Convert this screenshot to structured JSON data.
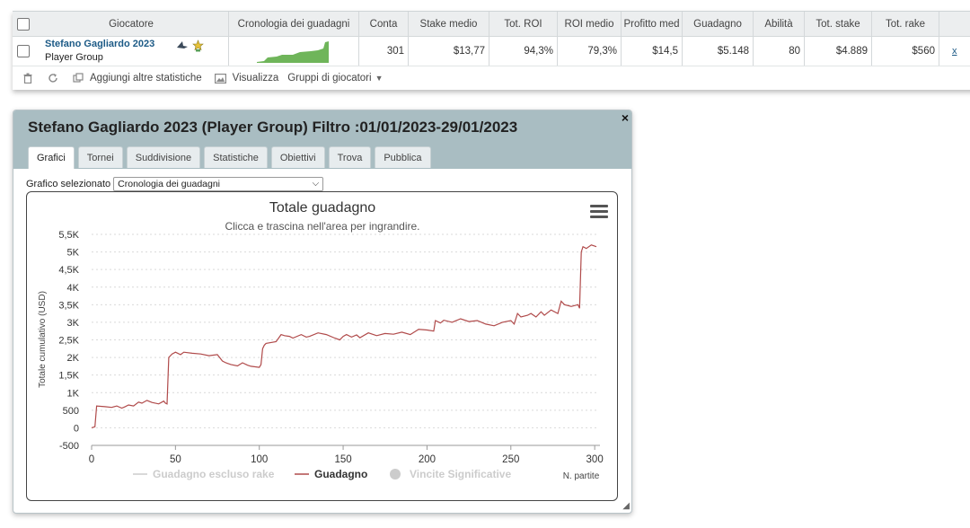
{
  "table": {
    "headers": [
      "Giocatore",
      "Cronologia dei guadagni",
      "Conta",
      "Stake medio",
      "Tot. ROI",
      "ROI medio",
      "Profitto med",
      "Guadagno",
      "Abilità",
      "Tot. stake",
      "Tot. rake"
    ],
    "row": {
      "player_name": "Stefano Gagliardo 2023",
      "player_group": "Player Group",
      "conta": "301",
      "stake_medio": "$13,77",
      "tot_roi": "94,3%",
      "roi_medio": "79,3%",
      "profitto_medio": "$14,5",
      "guadagno": "$5.148",
      "abilita": "80",
      "tot_stake": "$4.889",
      "tot_rake": "$560",
      "remove": "x"
    },
    "toolbar": {
      "add_stats": "Aggiungi altre statistiche",
      "view": "Visualizza",
      "player_groups": "Gruppi di giocatori"
    }
  },
  "dialog": {
    "title": "Stefano Gagliardo 2023 (Player Group) Filtro :01/01/2023-29/01/2023",
    "close": "×",
    "tabs": [
      "Grafici",
      "Tornei",
      "Suddivisione",
      "Statistiche",
      "Obiettivi",
      "Trova",
      "Pubblica"
    ],
    "active_tab": "Grafici",
    "graph_select_label": "Grafico selezionato",
    "graph_select_value": "Cronologia dei guadagni"
  },
  "chart_data": {
    "type": "line",
    "title": "Totale guadagno",
    "subtitle": "Clicca e trascina nell'area per ingrandire.",
    "ylabel": "Totale cumulativo (USD)",
    "xlabel": "N. partite",
    "ylim": [
      -500,
      5500
    ],
    "xlim": [
      0,
      301
    ],
    "y_ticks": [
      -500,
      0,
      500,
      1000,
      1500,
      2000,
      2500,
      3000,
      3500,
      4000,
      4500,
      5000,
      5500
    ],
    "y_tick_labels": [
      "-500",
      "0",
      "500",
      "1K",
      "1,5K",
      "2K",
      "2,5K",
      "3K",
      "3,5K",
      "4K",
      "4,5K",
      "5K",
      "5,5K"
    ],
    "x_ticks": [
      0,
      50,
      100,
      150,
      200,
      250,
      300
    ],
    "x_tick_labels": [
      "0",
      "50",
      "100",
      "150",
      "200",
      "250",
      "300"
    ],
    "grid": true,
    "legend_position": "bottom",
    "legend": [
      {
        "name": "Guadagno escluso rake",
        "enabled": false,
        "color": "#cccccc",
        "symbol": "line"
      },
      {
        "name": "Guadagno",
        "enabled": true,
        "color": "#b04a4a",
        "symbol": "line"
      },
      {
        "name": "Vincite Significative",
        "enabled": false,
        "color": "#cccccc",
        "symbol": "circle"
      }
    ],
    "series": [
      {
        "name": "Guadagno",
        "color": "#b04a4a",
        "x": [
          0,
          2,
          3,
          8,
          12,
          15,
          18,
          20,
          22,
          25,
          28,
          30,
          33,
          36,
          40,
          43,
          44,
          45,
          46,
          48,
          50,
          53,
          55,
          60,
          65,
          70,
          75,
          78,
          80,
          83,
          87,
          90,
          93,
          95,
          100,
          101,
          102,
          103,
          104,
          110,
          113,
          115,
          118,
          120,
          125,
          128,
          130,
          135,
          140,
          145,
          148,
          150,
          152,
          155,
          158,
          160,
          165,
          170,
          175,
          180,
          185,
          190,
          195,
          200,
          204,
          205,
          208,
          210,
          215,
          220,
          225,
          230,
          235,
          240,
          245,
          250,
          252,
          254,
          256,
          260,
          262,
          265,
          268,
          270,
          274,
          278,
          280,
          282,
          286,
          290,
          291,
          292,
          293,
          295,
          298,
          301
        ],
        "values": [
          0,
          30,
          620,
          600,
          580,
          620,
          560,
          600,
          650,
          620,
          730,
          700,
          780,
          720,
          680,
          760,
          700,
          680,
          2000,
          2100,
          2150,
          2080,
          2150,
          2120,
          2100,
          2050,
          2080,
          1900,
          1850,
          1800,
          1760,
          1850,
          1780,
          1750,
          1720,
          1800,
          2250,
          2350,
          2400,
          2450,
          2650,
          2620,
          2600,
          2550,
          2650,
          2580,
          2600,
          2700,
          2650,
          2550,
          2500,
          2600,
          2650,
          2580,
          2640,
          2560,
          2700,
          2620,
          2680,
          2660,
          2720,
          2650,
          2800,
          2780,
          2750,
          3050,
          2980,
          3060,
          3000,
          3100,
          3020,
          3050,
          2950,
          2900,
          3000,
          3050,
          2950,
          3250,
          3150,
          3200,
          3250,
          3150,
          3300,
          3200,
          3350,
          3250,
          3600,
          3500,
          3450,
          3500,
          3400,
          5000,
          5150,
          5100,
          5200,
          5150
        ]
      }
    ]
  }
}
